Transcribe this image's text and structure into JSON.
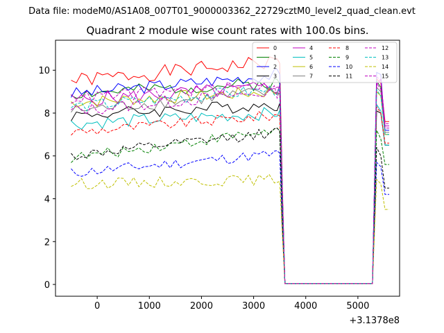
{
  "figure": {
    "suptitle": "Data file: modeM0/AS1A08_007T01_9000003362_22729cztM0_level2_quad_clean.evt",
    "offset_text": "+3.1378e8"
  },
  "chart_data": {
    "type": "line",
    "title": "Quadrant 2 module wise count rates with 100.0s bins.",
    "xlabel": "",
    "ylabel": "",
    "xlim": [
      -800,
      5800
    ],
    "ylim": [
      -0.55,
      11.4
    ],
    "xticks": [
      0,
      1000,
      2000,
      3000,
      4000,
      5000
    ],
    "yticks": [
      0,
      2,
      4,
      6,
      8,
      10
    ],
    "grid": false,
    "legend": {
      "placement": "top-right",
      "columns": 4
    },
    "x_offset": 313780000,
    "segments": [
      {
        "start": -500,
        "step": 100,
        "count": 40
      },
      {
        "start": 3450,
        "step": 50,
        "count": 4
      },
      {
        "start": 3650,
        "step": 100,
        "count": 16
      },
      {
        "start": 5280,
        "step": 80,
        "count": 5
      }
    ],
    "series": [
      {
        "name": "0",
        "color": "#ff0000",
        "dash": false,
        "base": 9.5,
        "trend": 0.9,
        "noise": 0.35,
        "tail": [
          9.6,
          9.4,
          7.6
        ],
        "seed": 1
      },
      {
        "name": "1",
        "color": "#008000",
        "dash": false,
        "base": 8.9,
        "trend": 0.5,
        "noise": 0.3,
        "tail": [
          9.5,
          9.2,
          7.0
        ],
        "seed": 2
      },
      {
        "name": "2",
        "color": "#0000ff",
        "dash": false,
        "base": 8.9,
        "trend": 0.9,
        "noise": 0.3,
        "tail": [
          9.9,
          9.8,
          7.2
        ],
        "seed": 3
      },
      {
        "name": "3",
        "color": "#000000",
        "dash": false,
        "base": 7.9,
        "trend": 0.5,
        "noise": 0.3,
        "tail": [
          8.1,
          8.0,
          6.5
        ],
        "seed": 4
      },
      {
        "name": "4",
        "color": "#bf00bf",
        "dash": false,
        "base": 8.6,
        "trend": 0.6,
        "noise": 0.35,
        "tail": [
          9.3,
          9.6,
          7.4
        ],
        "seed": 5
      },
      {
        "name": "5",
        "color": "#00bfbf",
        "dash": false,
        "base": 7.5,
        "trend": 0.5,
        "noise": 0.3,
        "tail": [
          8.4,
          8.1,
          6.5
        ],
        "seed": 6
      },
      {
        "name": "6",
        "color": "#bfbf00",
        "dash": false,
        "base": 8.5,
        "trend": 0.5,
        "noise": 0.3,
        "tail": [
          9.0,
          8.8,
          7.0
        ],
        "seed": 7
      },
      {
        "name": "7",
        "color": "#808080",
        "dash": false,
        "base": 8.1,
        "trend": 0.9,
        "noise": 0.3,
        "tail": [
          9.2,
          9.0,
          7.1
        ],
        "seed": 8
      },
      {
        "name": "8",
        "color": "#ff0000",
        "dash": true,
        "base": 7.1,
        "trend": 0.8,
        "noise": 0.25,
        "tail": [
          8.3,
          8.0,
          6.6
        ],
        "seed": 9
      },
      {
        "name": "9",
        "color": "#008000",
        "dash": true,
        "base": 5.9,
        "trend": 1.3,
        "noise": 0.25,
        "tail": [
          7.2,
          6.8,
          5.6
        ],
        "seed": 10
      },
      {
        "name": "10",
        "color": "#0000ff",
        "dash": true,
        "base": 5.2,
        "trend": 0.9,
        "noise": 0.25,
        "tail": [
          5.7,
          5.5,
          4.2
        ],
        "seed": 11
      },
      {
        "name": "11",
        "color": "#000000",
        "dash": true,
        "base": 6.0,
        "trend": 1.1,
        "noise": 0.25,
        "tail": [
          6.4,
          6.0,
          4.5
        ],
        "seed": 12
      },
      {
        "name": "12",
        "color": "#bf00bf",
        "dash": true,
        "base": 8.1,
        "trend": 0.9,
        "noise": 0.3,
        "tail": [
          9.4,
          9.1,
          7.3
        ],
        "seed": 13
      },
      {
        "name": "13",
        "color": "#00bfbf",
        "dash": true,
        "base": 8.3,
        "trend": 0.8,
        "noise": 0.3,
        "tail": [
          9.1,
          8.8,
          7.0
        ],
        "seed": 14
      },
      {
        "name": "14",
        "color": "#bfbf00",
        "dash": true,
        "base": 4.7,
        "trend": 0.2,
        "noise": 0.25,
        "tail": [
          4.9,
          4.7,
          3.5
        ],
        "seed": 15
      },
      {
        "name": "15",
        "color": "#bf00bf",
        "dash": true,
        "base": 8.7,
        "trend": 0.6,
        "noise": 0.3,
        "tail": [
          9.7,
          9.5,
          7.5
        ],
        "seed": 16
      }
    ]
  }
}
